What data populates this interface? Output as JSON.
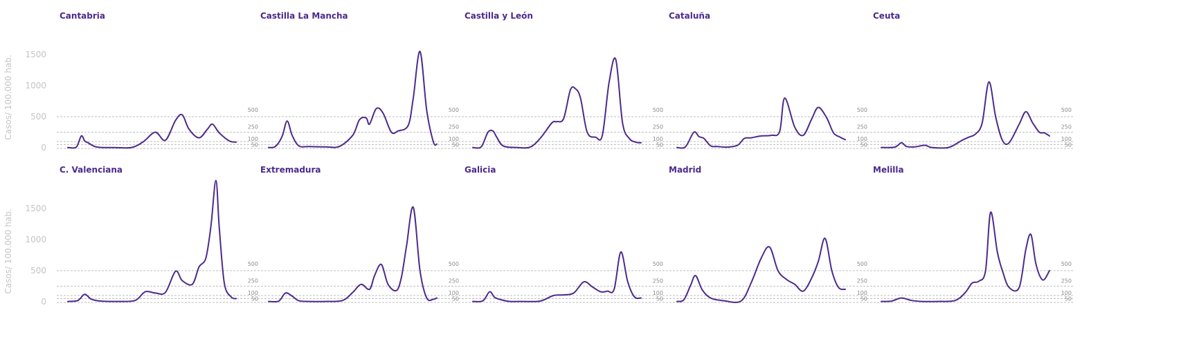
{
  "chart_data": {
    "type": "line",
    "title": "",
    "ylabel": "Casos/ 100.000 hab.",
    "xlabel": "",
    "ylim": [
      0,
      2000
    ],
    "y_ticks": [
      0,
      500,
      1000,
      1500
    ],
    "reference_lines": [
      500,
      250,
      100,
      50
    ],
    "reference_labels": [
      "500",
      "250",
      "100",
      "50"
    ],
    "grid": false,
    "line_color": "#4b2a8c",
    "title_color": "#4b2a8c",
    "layout": {
      "rows": 2,
      "cols": 5
    },
    "panels": [
      {
        "name": "Cantabria",
        "x": [
          0,
          0.05,
          0.08,
          0.1,
          0.12,
          0.16,
          0.2,
          0.28,
          0.38,
          0.45,
          0.52,
          0.58,
          0.64,
          0.68,
          0.72,
          0.78,
          0.83,
          0.86,
          0.9,
          0.96,
          1.0
        ],
        "values": [
          5,
          10,
          190,
          110,
          80,
          20,
          5,
          3,
          5,
          100,
          250,
          120,
          440,
          530,
          300,
          160,
          300,
          380,
          240,
          110,
          90
        ]
      },
      {
        "name": "Castilla La Mancha",
        "x": [
          0,
          0.04,
          0.08,
          0.11,
          0.14,
          0.18,
          0.24,
          0.34,
          0.42,
          0.5,
          0.54,
          0.58,
          0.6,
          0.64,
          0.68,
          0.73,
          0.77,
          0.83,
          0.86,
          0.9,
          0.94,
          0.98,
          1.0
        ],
        "values": [
          5,
          20,
          180,
          430,
          200,
          30,
          20,
          15,
          20,
          200,
          450,
          480,
          380,
          630,
          560,
          250,
          270,
          360,
          800,
          1550,
          600,
          90,
          60
        ]
      },
      {
        "name": "Castilla y León",
        "x": [
          0,
          0.05,
          0.09,
          0.12,
          0.14,
          0.18,
          0.26,
          0.34,
          0.4,
          0.47,
          0.5,
          0.54,
          0.58,
          0.61,
          0.64,
          0.68,
          0.73,
          0.77,
          0.81,
          0.85,
          0.89,
          0.93,
          0.97,
          1.0
        ],
        "values": [
          5,
          15,
          250,
          270,
          180,
          30,
          5,
          10,
          150,
          400,
          420,
          470,
          930,
          950,
          800,
          250,
          170,
          200,
          1050,
          1420,
          400,
          150,
          90,
          80
        ]
      },
      {
        "name": "Cataluña",
        "x": [
          0,
          0.05,
          0.1,
          0.13,
          0.16,
          0.2,
          0.24,
          0.3,
          0.36,
          0.4,
          0.44,
          0.5,
          0.56,
          0.61,
          0.64,
          0.7,
          0.75,
          0.8,
          0.84,
          0.89,
          0.93,
          0.97,
          1.0
        ],
        "values": [
          5,
          15,
          250,
          180,
          150,
          30,
          20,
          10,
          40,
          150,
          160,
          190,
          200,
          260,
          800,
          330,
          200,
          460,
          650,
          480,
          240,
          170,
          130
        ]
      },
      {
        "name": "Ceuta",
        "x": [
          0,
          0.08,
          0.12,
          0.15,
          0.2,
          0.26,
          0.3,
          0.4,
          0.48,
          0.52,
          0.56,
          0.6,
          0.64,
          0.68,
          0.72,
          0.76,
          0.82,
          0.86,
          0.9,
          0.94,
          0.97,
          1.0
        ],
        "values": [
          5,
          10,
          80,
          20,
          15,
          40,
          5,
          5,
          120,
          170,
          220,
          400,
          1060,
          500,
          120,
          80,
          380,
          580,
          400,
          250,
          240,
          190
        ]
      },
      {
        "name": "C. Valenciana",
        "x": [
          0,
          0.06,
          0.1,
          0.14,
          0.2,
          0.3,
          0.4,
          0.46,
          0.52,
          0.58,
          0.64,
          0.68,
          0.74,
          0.78,
          0.82,
          0.85,
          0.88,
          0.9,
          0.93,
          0.97,
          1.0
        ],
        "values": [
          5,
          20,
          120,
          40,
          10,
          5,
          20,
          160,
          140,
          150,
          490,
          340,
          280,
          560,
          700,
          1200,
          1950,
          1200,
          300,
          80,
          50
        ]
      },
      {
        "name": "Extremadura",
        "x": [
          0,
          0.06,
          0.1,
          0.14,
          0.18,
          0.24,
          0.34,
          0.44,
          0.5,
          0.55,
          0.6,
          0.63,
          0.67,
          0.71,
          0.76,
          0.79,
          0.82,
          0.86,
          0.9,
          0.94,
          0.98,
          1.0
        ],
        "values": [
          5,
          10,
          140,
          90,
          15,
          5,
          5,
          20,
          150,
          280,
          200,
          420,
          600,
          280,
          180,
          400,
          900,
          1520,
          500,
          60,
          40,
          60
        ]
      },
      {
        "name": "Galicia",
        "x": [
          0,
          0.06,
          0.1,
          0.13,
          0.17,
          0.22,
          0.3,
          0.4,
          0.48,
          0.54,
          0.6,
          0.66,
          0.71,
          0.76,
          0.8,
          0.84,
          0.88,
          0.92,
          0.96,
          1.0
        ],
        "values": [
          5,
          15,
          160,
          70,
          30,
          5,
          5,
          10,
          100,
          110,
          140,
          320,
          240,
          160,
          170,
          200,
          800,
          330,
          80,
          60
        ]
      },
      {
        "name": "Madrid",
        "x": [
          0,
          0.04,
          0.08,
          0.11,
          0.15,
          0.2,
          0.28,
          0.38,
          0.44,
          0.5,
          0.55,
          0.6,
          0.65,
          0.7,
          0.75,
          0.8,
          0.84,
          0.88,
          0.92,
          0.96,
          1.0
        ],
        "values": [
          5,
          30,
          260,
          420,
          190,
          60,
          15,
          10,
          300,
          700,
          880,
          500,
          360,
          280,
          170,
          380,
          650,
          1020,
          500,
          230,
          200
        ]
      },
      {
        "name": "Melilla",
        "x": [
          0,
          0.06,
          0.12,
          0.18,
          0.24,
          0.34,
          0.44,
          0.5,
          0.54,
          0.58,
          0.62,
          0.65,
          0.69,
          0.72,
          0.76,
          0.82,
          0.86,
          0.89,
          0.92,
          0.96,
          1.0
        ],
        "values": [
          5,
          10,
          60,
          20,
          5,
          5,
          20,
          150,
          300,
          330,
          500,
          1440,
          800,
          500,
          230,
          230,
          850,
          1080,
          600,
          350,
          500
        ]
      }
    ]
  },
  "axis": {
    "ylabel": "Casos/ 100.000 hab.",
    "ticks": [
      "0",
      "500",
      "1000",
      "1500"
    ]
  }
}
